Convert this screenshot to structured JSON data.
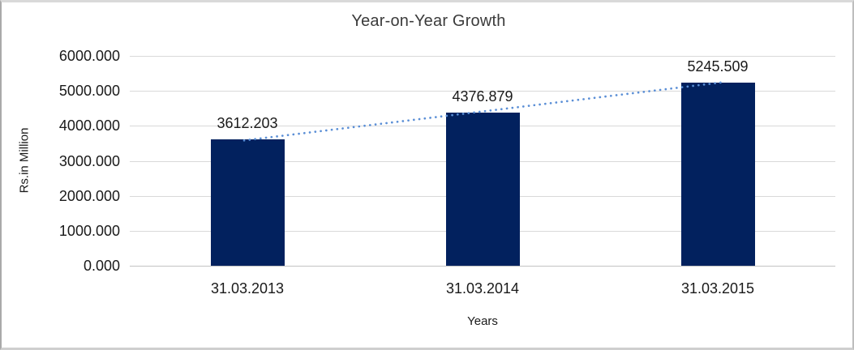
{
  "chart": {
    "title": "Year-on-Year Growth",
    "y_axis_title": "Rs.in Million",
    "x_axis_title": "Years"
  },
  "chart_data": {
    "type": "bar",
    "title": "Year-on-Year Growth",
    "xlabel": "Years",
    "ylabel": "Rs.in Million",
    "categories": [
      "31.03.2013",
      "31.03.2014",
      "31.03.2015"
    ],
    "values": [
      3612.203,
      4376.879,
      5245.509
    ],
    "value_labels": [
      "3612.203",
      "4376.879",
      "5245.509"
    ],
    "ylim": [
      0,
      6000
    ],
    "y_tick_step": 1000,
    "y_tick_labels": [
      "0.000",
      "1000.000",
      "2000.000",
      "3000.000",
      "4000.000",
      "5000.000",
      "6000.000"
    ],
    "grid": true,
    "legend": "none",
    "trendline": {
      "type": "linear",
      "style": "dotted"
    },
    "colors": {
      "bar": "#02215E",
      "trendline": "#5B8FD6",
      "gridline": "#D9D9D9",
      "axis_line": "#C3C3C3",
      "text": "#1A1A1A"
    }
  }
}
